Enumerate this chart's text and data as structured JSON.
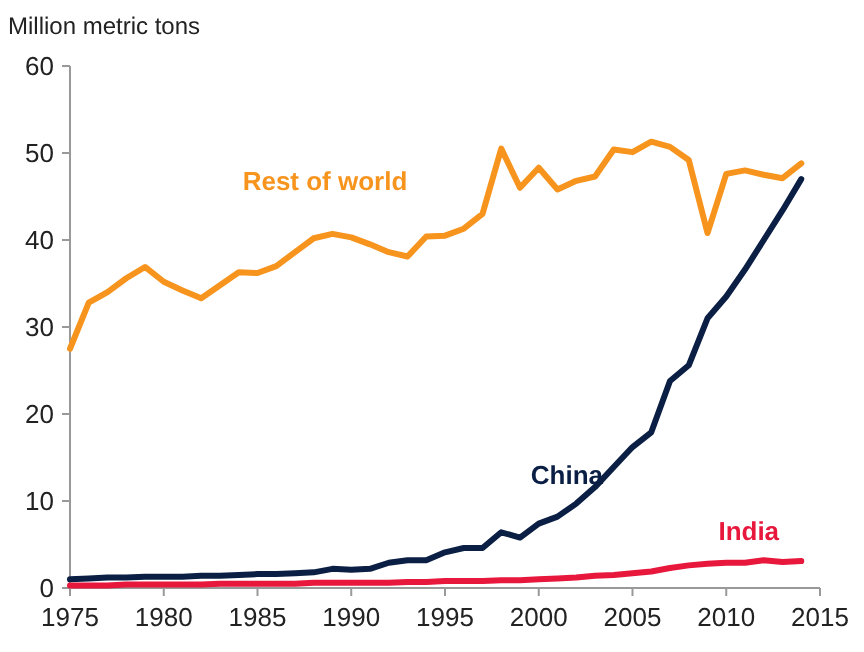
{
  "chart_data": {
    "type": "line",
    "ylabel": "Million metric tons",
    "x": [
      1975,
      1976,
      1977,
      1978,
      1979,
      1980,
      1981,
      1982,
      1983,
      1984,
      1985,
      1986,
      1987,
      1988,
      1989,
      1990,
      1991,
      1992,
      1993,
      1994,
      1995,
      1996,
      1997,
      1998,
      1999,
      2000,
      2001,
      2002,
      2003,
      2004,
      2005,
      2006,
      2007,
      2008,
      2009,
      2010,
      2011,
      2012,
      2013,
      2014
    ],
    "series": [
      {
        "name": "Rest of world",
        "color": "#f7941d",
        "values": [
          27.5,
          32.8,
          34,
          35.6,
          36.9,
          35.2,
          34.2,
          33.3,
          34.8,
          36.3,
          36.2,
          37,
          38.6,
          40.2,
          40.7,
          40.3,
          39.5,
          38.6,
          38.1,
          40.4,
          40.5,
          41.3,
          43,
          50.5,
          46,
          48.3,
          45.8,
          46.8,
          47.3,
          50.4,
          50.1,
          51.3,
          50.7,
          49.2,
          40.8,
          47.6,
          48,
          47.5,
          47.1,
          48.8
        ]
      },
      {
        "name": "China",
        "color": "#0b1f45",
        "values": [
          1,
          1.1,
          1.2,
          1.2,
          1.3,
          1.3,
          1.3,
          1.4,
          1.4,
          1.5,
          1.6,
          1.6,
          1.7,
          1.8,
          2.2,
          2.1,
          2.2,
          2.9,
          3.2,
          3.2,
          4.1,
          4.6,
          4.6,
          6.4,
          5.8,
          7.4,
          8.2,
          9.7,
          11.6,
          13.9,
          16.2,
          17.9,
          23.8,
          25.6,
          31,
          33.5,
          36.6,
          40,
          43.4,
          47
        ]
      },
      {
        "name": "India",
        "color": "#e8173c",
        "values": [
          0.3,
          0.3,
          0.3,
          0.4,
          0.4,
          0.4,
          0.4,
          0.4,
          0.5,
          0.5,
          0.5,
          0.5,
          0.5,
          0.6,
          0.6,
          0.6,
          0.6,
          0.6,
          0.7,
          0.7,
          0.8,
          0.8,
          0.8,
          0.9,
          0.9,
          1,
          1.1,
          1.2,
          1.4,
          1.5,
          1.7,
          1.9,
          2.3,
          2.6,
          2.8,
          2.9,
          2.9,
          3.2,
          3,
          3.1
        ]
      }
    ],
    "xlim": [
      1975,
      2015
    ],
    "xticks": [
      1975,
      1980,
      1985,
      1990,
      1995,
      2000,
      2005,
      2010,
      2015
    ],
    "ylim": [
      0,
      60
    ],
    "yticks": [
      0,
      10,
      20,
      30,
      40,
      50,
      60
    ],
    "grid": false,
    "legend": false
  }
}
